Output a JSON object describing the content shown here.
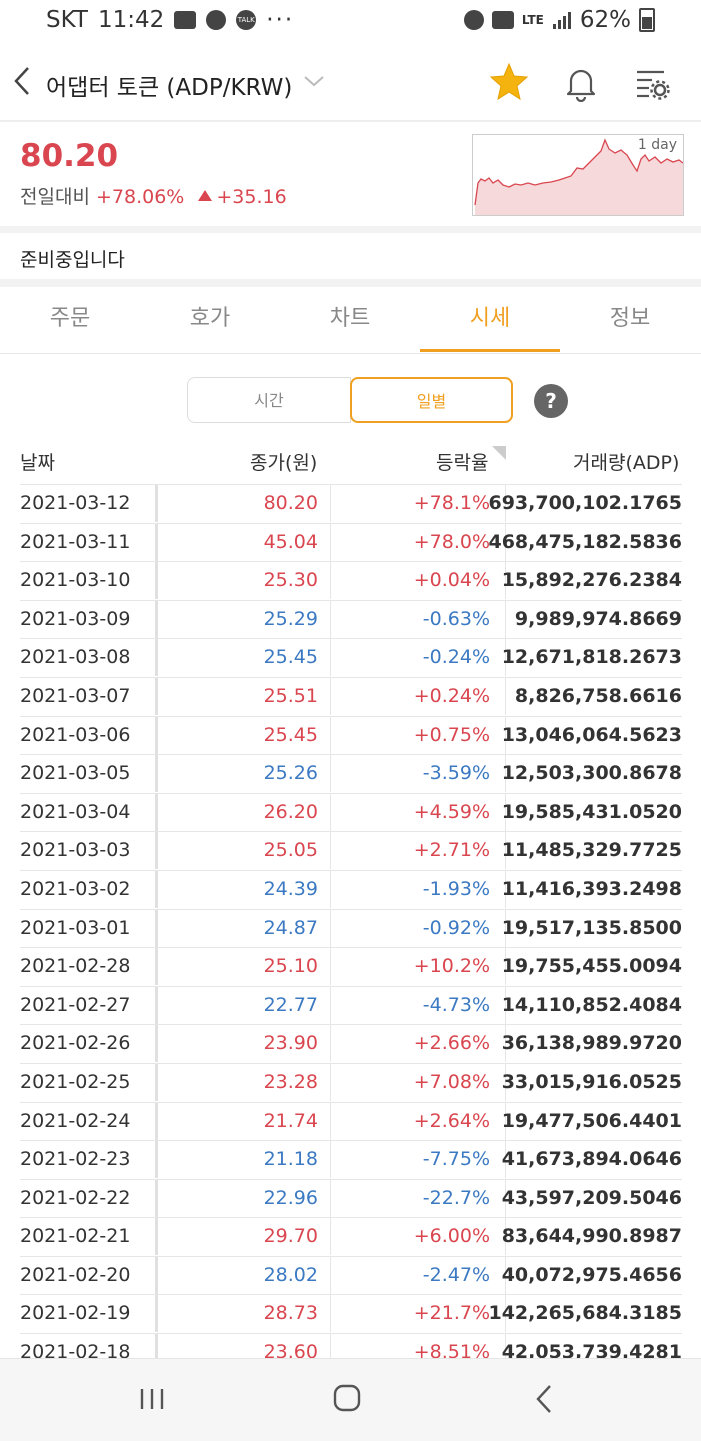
{
  "status_bar": {
    "carrier": "SKT",
    "time": "11:42",
    "talk": "TALK",
    "dots": "···",
    "lte": "LTE",
    "battery": "62%"
  },
  "header": {
    "title": "어댑터 토큰 (ADP/KRW)"
  },
  "price_panel": {
    "price": "80.20",
    "change_label": "전일대비",
    "change_pct": "+78.06%",
    "change_abs": "+35.16",
    "mini_chart_label": "1 day"
  },
  "notice": "준비중입니다",
  "tabs": [
    "주문",
    "호가",
    "차트",
    "시세",
    "정보"
  ],
  "active_tab": "시세",
  "toggle": {
    "time": "시간",
    "daily": "일별"
  },
  "help": "?",
  "table": {
    "headers": {
      "date": "날짜",
      "close": "종가(원)",
      "change": "등락율",
      "volume": "거래량(ADP)"
    },
    "rows": [
      {
        "date": "2021-03-12",
        "close": "80.20",
        "change": "+78.1%",
        "volume": "693,700,102.1765",
        "dir": "up"
      },
      {
        "date": "2021-03-11",
        "close": "45.04",
        "change": "+78.0%",
        "volume": "468,475,182.5836",
        "dir": "up"
      },
      {
        "date": "2021-03-10",
        "close": "25.30",
        "change": "+0.04%",
        "volume": "15,892,276.2384",
        "dir": "up"
      },
      {
        "date": "2021-03-09",
        "close": "25.29",
        "change": "-0.63%",
        "volume": "9,989,974.8669",
        "dir": "down"
      },
      {
        "date": "2021-03-08",
        "close": "25.45",
        "change": "-0.24%",
        "volume": "12,671,818.2673",
        "dir": "down"
      },
      {
        "date": "2021-03-07",
        "close": "25.51",
        "change": "+0.24%",
        "volume": "8,826,758.6616",
        "dir": "up"
      },
      {
        "date": "2021-03-06",
        "close": "25.45",
        "change": "+0.75%",
        "volume": "13,046,064.5623",
        "dir": "up"
      },
      {
        "date": "2021-03-05",
        "close": "25.26",
        "change": "-3.59%",
        "volume": "12,503,300.8678",
        "dir": "down"
      },
      {
        "date": "2021-03-04",
        "close": "26.20",
        "change": "+4.59%",
        "volume": "19,585,431.0520",
        "dir": "up"
      },
      {
        "date": "2021-03-03",
        "close": "25.05",
        "change": "+2.71%",
        "volume": "11,485,329.7725",
        "dir": "up"
      },
      {
        "date": "2021-03-02",
        "close": "24.39",
        "change": "-1.93%",
        "volume": "11,416,393.2498",
        "dir": "down"
      },
      {
        "date": "2021-03-01",
        "close": "24.87",
        "change": "-0.92%",
        "volume": "19,517,135.8500",
        "dir": "down"
      },
      {
        "date": "2021-02-28",
        "close": "25.10",
        "change": "+10.2%",
        "volume": "19,755,455.0094",
        "dir": "up"
      },
      {
        "date": "2021-02-27",
        "close": "22.77",
        "change": "-4.73%",
        "volume": "14,110,852.4084",
        "dir": "down"
      },
      {
        "date": "2021-02-26",
        "close": "23.90",
        "change": "+2.66%",
        "volume": "36,138,989.9720",
        "dir": "up"
      },
      {
        "date": "2021-02-25",
        "close": "23.28",
        "change": "+7.08%",
        "volume": "33,015,916.0525",
        "dir": "up"
      },
      {
        "date": "2021-02-24",
        "close": "21.74",
        "change": "+2.64%",
        "volume": "19,477,506.4401",
        "dir": "up"
      },
      {
        "date": "2021-02-23",
        "close": "21.18",
        "change": "-7.75%",
        "volume": "41,673,894.0646",
        "dir": "down"
      },
      {
        "date": "2021-02-22",
        "close": "22.96",
        "change": "-22.7%",
        "volume": "43,597,209.5046",
        "dir": "down"
      },
      {
        "date": "2021-02-21",
        "close": "29.70",
        "change": "+6.00%",
        "volume": "83,644,990.8987",
        "dir": "up"
      },
      {
        "date": "2021-02-20",
        "close": "28.02",
        "change": "-2.47%",
        "volume": "40,072,975.4656",
        "dir": "down"
      },
      {
        "date": "2021-02-19",
        "close": "28.73",
        "change": "+21.7%",
        "volume": "142,265,684.3185",
        "dir": "up"
      },
      {
        "date": "2021-02-18",
        "close": "23.60",
        "change": "+8.51%",
        "volume": "42,053,739.4281",
        "dir": "up"
      }
    ]
  },
  "colors": {
    "up": "#d9464f",
    "down": "#3b79c2",
    "accent": "#f0a020"
  }
}
